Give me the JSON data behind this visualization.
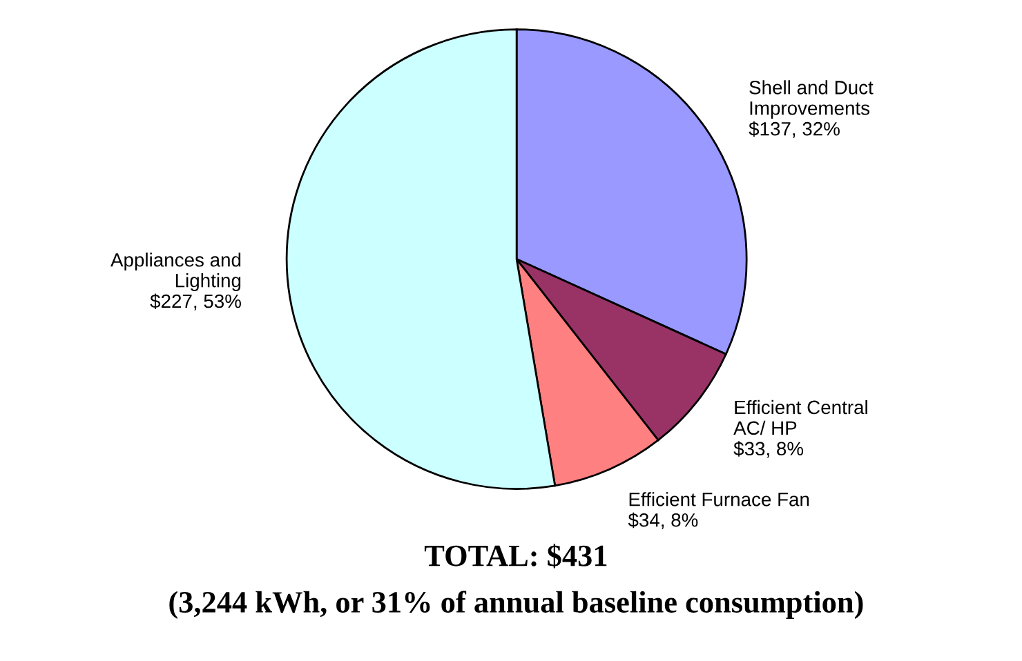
{
  "chart_data": {
    "type": "pie",
    "title": "TOTAL: $431",
    "subtitle": "(3,244 kWh, or 31% of annual baseline consumption)",
    "categories": [
      "Shell and Duct\nImprovements",
      "Efficient Central\nAC/ HP",
      "Efficient Furnace Fan",
      "Appliances and\nLighting"
    ],
    "values": [
      137,
      33,
      34,
      227
    ],
    "value_labels": [
      "$137, 32%",
      "$33, 8%",
      "$34, 8%",
      "$227, 53%"
    ],
    "colors": [
      "#9999ff",
      "#993366",
      "#ff8080",
      "#ccffff"
    ],
    "legend": false
  }
}
